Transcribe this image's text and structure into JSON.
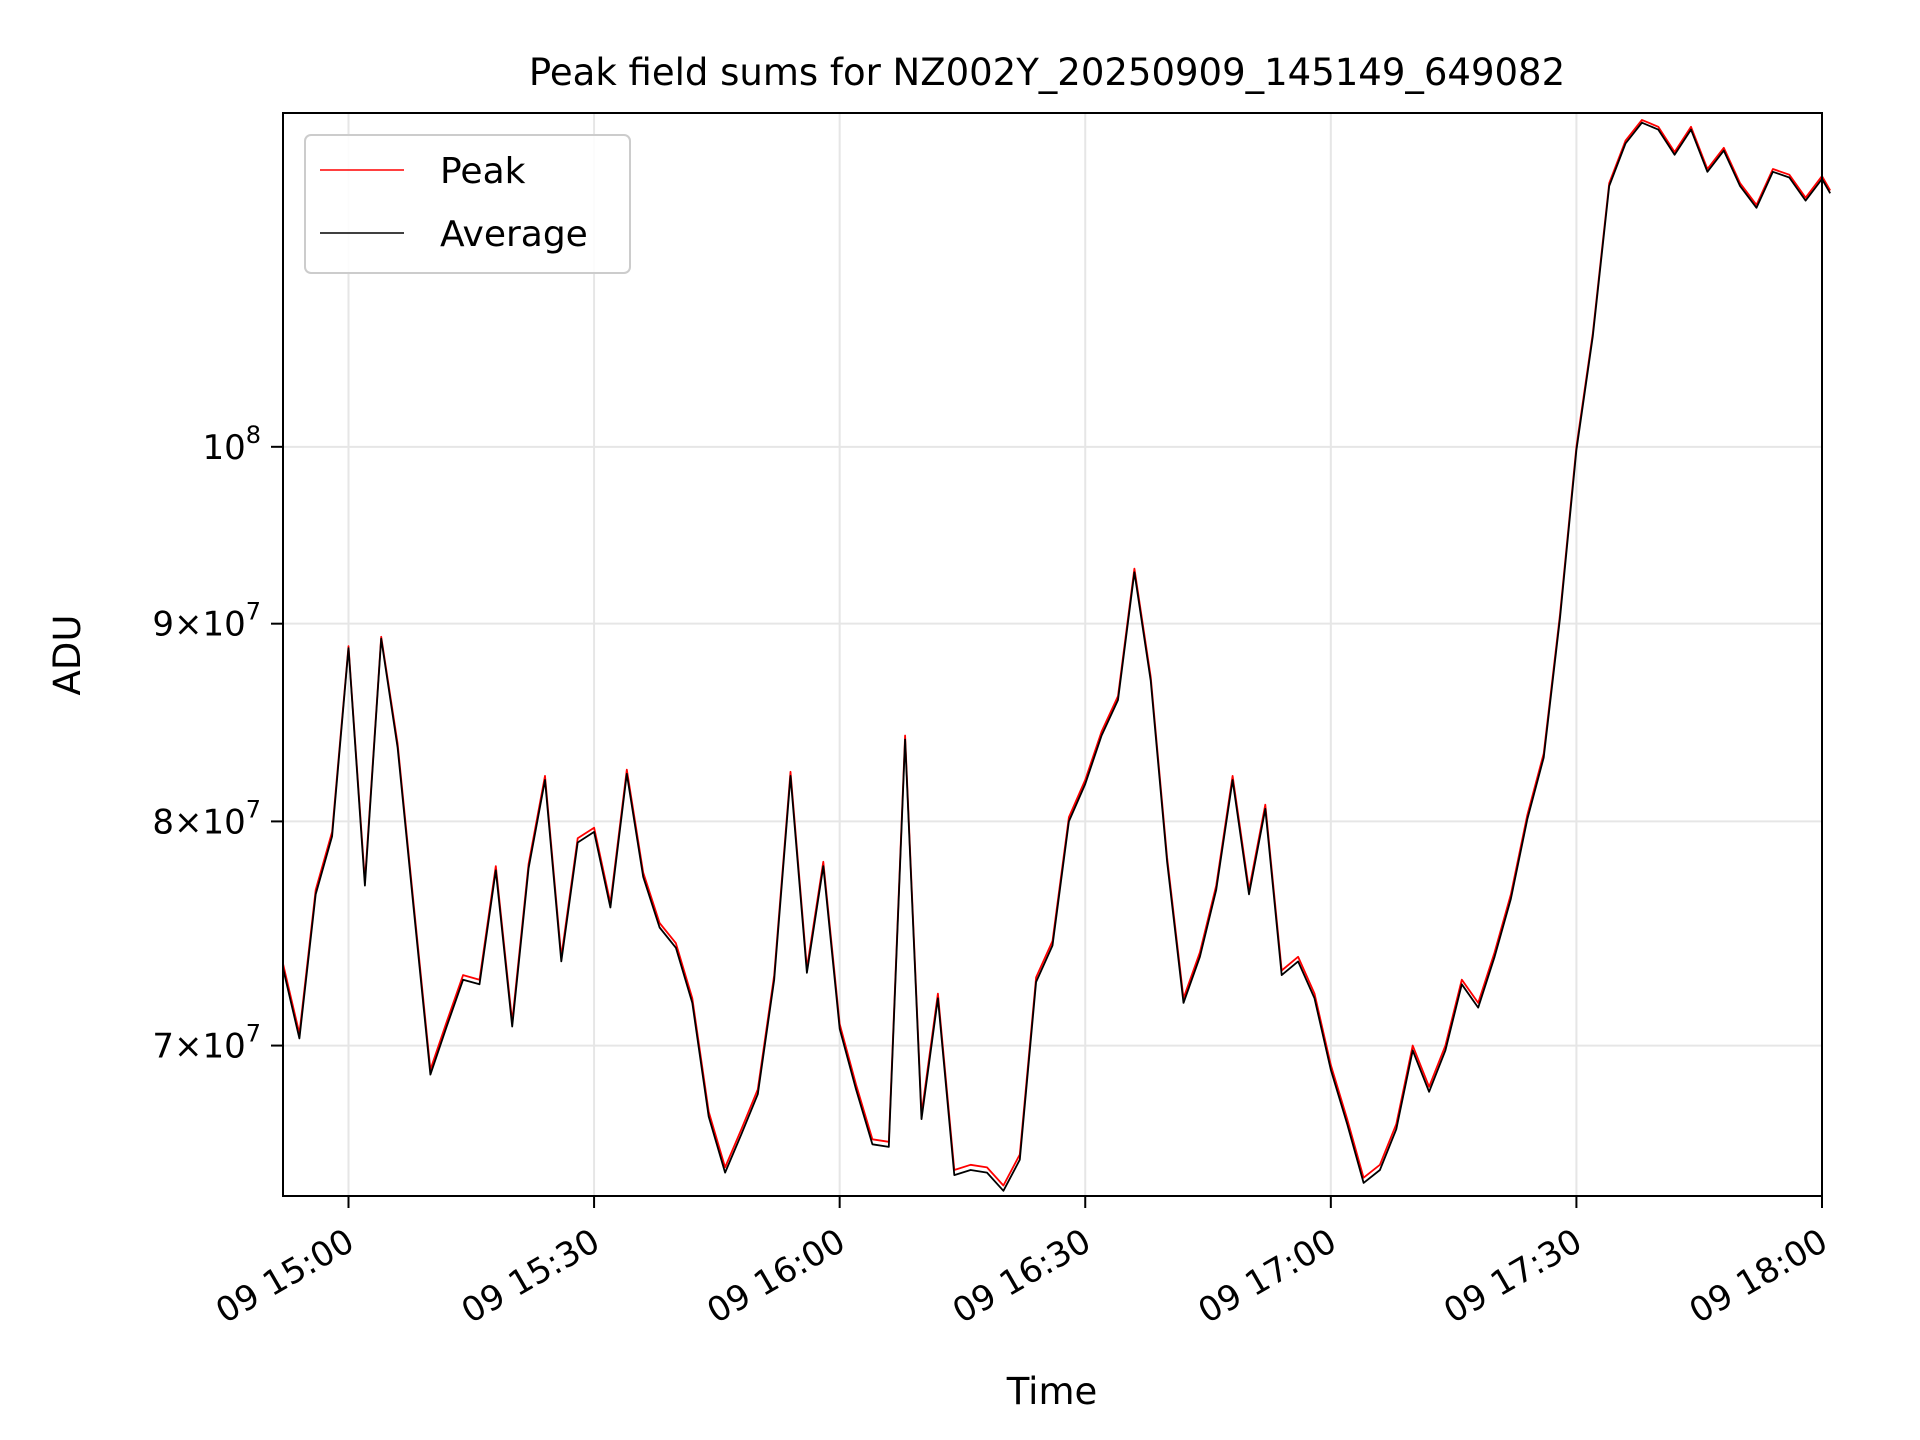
{
  "chart_data": {
    "type": "line",
    "title": "Peak field sums for NZ002Y_20250909_145149_649082",
    "xlabel": "Time",
    "ylabel": "ADU",
    "y_scale": "log",
    "x_range": [
      "2025-09-09 14:52",
      "2025-09-09 18:00"
    ],
    "ylim": [
      64000000,
      122000000
    ],
    "x_ticks": [
      {
        "value": "2025-09-09 15:00",
        "label": "09 15:00"
      },
      {
        "value": "2025-09-09 15:30",
        "label": "09 15:30"
      },
      {
        "value": "2025-09-09 16:00",
        "label": "09 16:00"
      },
      {
        "value": "2025-09-09 16:30",
        "label": "09 16:30"
      },
      {
        "value": "2025-09-09 17:00",
        "label": "09 17:00"
      },
      {
        "value": "2025-09-09 17:30",
        "label": "09 17:30"
      },
      {
        "value": "2025-09-09 18:00",
        "label": "09 18:00"
      }
    ],
    "y_ticks": [
      {
        "value": 70000000,
        "mantissa": "7",
        "exp": "7"
      },
      {
        "value": 80000000,
        "mantissa": "8",
        "exp": "7"
      },
      {
        "value": 90000000,
        "mantissa": "9",
        "exp": "7"
      },
      {
        "value": 100000000,
        "mantissa": "",
        "exp": "8"
      }
    ],
    "grid": true,
    "legend_position": "top-left",
    "x": [
      "14:52",
      "14:54",
      "14:56",
      "14:58",
      "15:00",
      "15:02",
      "15:04",
      "15:06",
      "15:08",
      "15:10",
      "15:12",
      "15:14",
      "15:16",
      "15:18",
      "15:20",
      "15:22",
      "15:24",
      "15:26",
      "15:28",
      "15:30",
      "15:32",
      "15:34",
      "15:36",
      "15:38",
      "15:40",
      "15:42",
      "15:44",
      "15:46",
      "15:48",
      "15:50",
      "15:52",
      "15:54",
      "15:56",
      "15:58",
      "16:00",
      "16:02",
      "16:04",
      "16:06",
      "16:08",
      "16:10",
      "16:12",
      "16:14",
      "16:16",
      "16:18",
      "16:20",
      "16:22",
      "16:24",
      "16:26",
      "16:28",
      "16:30",
      "16:32",
      "16:34",
      "16:36",
      "16:38",
      "16:40",
      "16:42",
      "16:44",
      "16:46",
      "16:48",
      "16:50",
      "16:52",
      "16:54",
      "16:56",
      "16:58",
      "17:00",
      "17:02",
      "17:04",
      "17:06",
      "17:08",
      "17:10",
      "17:12",
      "17:14",
      "17:16",
      "17:18",
      "17:20",
      "17:22",
      "17:24",
      "17:26",
      "17:28",
      "17:30",
      "17:32",
      "17:34",
      "17:36",
      "17:38",
      "17:40",
      "17:42",
      "17:44",
      "17:46",
      "17:48",
      "17:50",
      "17:52",
      "17:54",
      "17:56",
      "17:58",
      "18:00",
      "18:01"
    ],
    "series": [
      {
        "name": "Peak",
        "color": "#ff0000",
        "values": [
          73500000,
          70500000,
          76800000,
          79500000,
          88800000,
          77200000,
          89300000,
          83800000,
          76000000,
          69000000,
          71000000,
          73000000,
          72800000,
          77900000,
          71000000,
          78000000,
          82200000,
          73800000,
          79200000,
          79700000,
          76200000,
          82500000,
          77600000,
          75300000,
          74400000,
          72000000,
          67300000,
          65100000,
          66600000,
          68200000,
          73000000,
          82400000,
          73300000,
          78100000,
          70900000,
          68400000,
          66200000,
          66100000,
          84200000,
          67200000,
          72200000,
          65000000,
          65200000,
          65100000,
          64400000,
          65600000,
          72900000,
          74500000,
          80200000,
          82000000,
          84400000,
          86200000,
          93000000,
          87200000,
          78300000,
          72000000,
          74000000,
          77000000,
          82200000,
          76800000,
          80800000,
          73200000,
          73800000,
          72200000,
          69200000,
          67000000,
          64700000,
          65200000,
          66800000,
          70000000,
          68300000,
          70000000,
          72800000,
          71800000,
          74000000,
          76600000,
          80300000,
          83300000,
          90500000,
          100000000,
          107000000,
          117000000,
          120000000,
          121500000,
          121000000,
          119200000,
          121000000,
          118000000,
          119500000,
          117000000,
          115500000,
          118000000,
          117600000,
          116000000,
          117500000,
          116500000
        ]
      },
      {
        "name": "Average",
        "color": "#000000",
        "values": [
          73300000,
          70300000,
          76600000,
          79300000,
          88700000,
          77000000,
          89200000,
          83600000,
          75800000,
          68800000,
          70800000,
          72800000,
          72600000,
          77700000,
          70800000,
          77800000,
          82000000,
          73600000,
          79000000,
          79500000,
          76000000,
          82300000,
          77400000,
          75100000,
          74200000,
          71800000,
          67100000,
          64900000,
          66400000,
          68000000,
          72800000,
          82200000,
          73100000,
          77900000,
          70700000,
          68200000,
          66000000,
          65900000,
          84000000,
          67000000,
          72000000,
          64800000,
          65000000,
          64900000,
          64200000,
          65400000,
          72700000,
          74300000,
          80000000,
          81800000,
          84200000,
          86000000,
          92800000,
          87000000,
          78100000,
          71800000,
          73800000,
          76800000,
          82000000,
          76600000,
          80600000,
          73000000,
          73600000,
          72000000,
          69000000,
          66800000,
          64500000,
          65000000,
          66600000,
          69800000,
          68100000,
          69800000,
          72600000,
          71600000,
          73800000,
          76400000,
          80100000,
          83100000,
          90300000,
          99800000,
          106800000,
          116800000,
          119800000,
          121300000,
          120800000,
          119000000,
          120800000,
          117800000,
          119300000,
          116800000,
          115300000,
          117800000,
          117400000,
          115800000,
          117300000,
          116300000
        ]
      }
    ]
  }
}
